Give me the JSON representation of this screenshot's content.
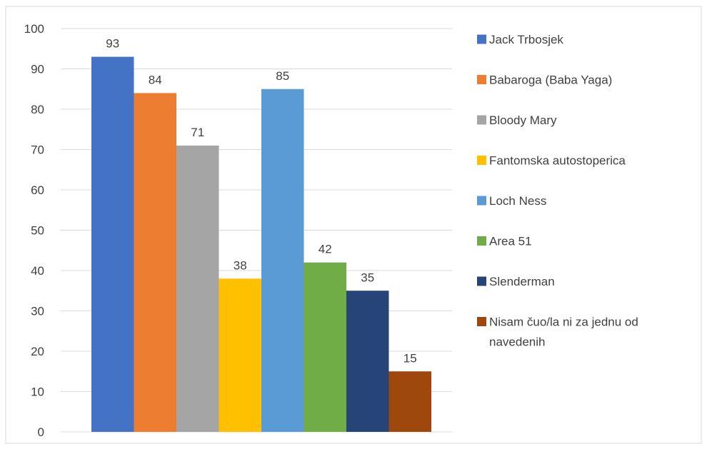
{
  "chart_data": {
    "type": "bar",
    "title": "",
    "xlabel": "",
    "ylabel": "",
    "ylim": [
      0,
      100
    ],
    "yticks": [
      0,
      10,
      20,
      30,
      40,
      50,
      60,
      70,
      80,
      90,
      100
    ],
    "grid": true,
    "legend_position": "right",
    "series": [
      {
        "name": "Jack Trbosjek",
        "value": 93,
        "color": "#4472C4"
      },
      {
        "name": "Babaroga (Baba Yaga)",
        "value": 84,
        "color": "#ED7D31"
      },
      {
        "name": "Bloody Mary",
        "value": 71,
        "color": "#A5A5A5"
      },
      {
        "name": "Fantomska autostoperica",
        "value": 38,
        "color": "#FFC000"
      },
      {
        "name": "Loch Ness",
        "value": 85,
        "color": "#5B9BD5"
      },
      {
        "name": "Area 51",
        "value": 42,
        "color": "#70AD47"
      },
      {
        "name": "Slenderman",
        "value": 35,
        "color": "#264478"
      },
      {
        "name": "Nisam čuo/la ni za jednu od navedenih",
        "value": 15,
        "color": "#9E480E"
      }
    ]
  }
}
